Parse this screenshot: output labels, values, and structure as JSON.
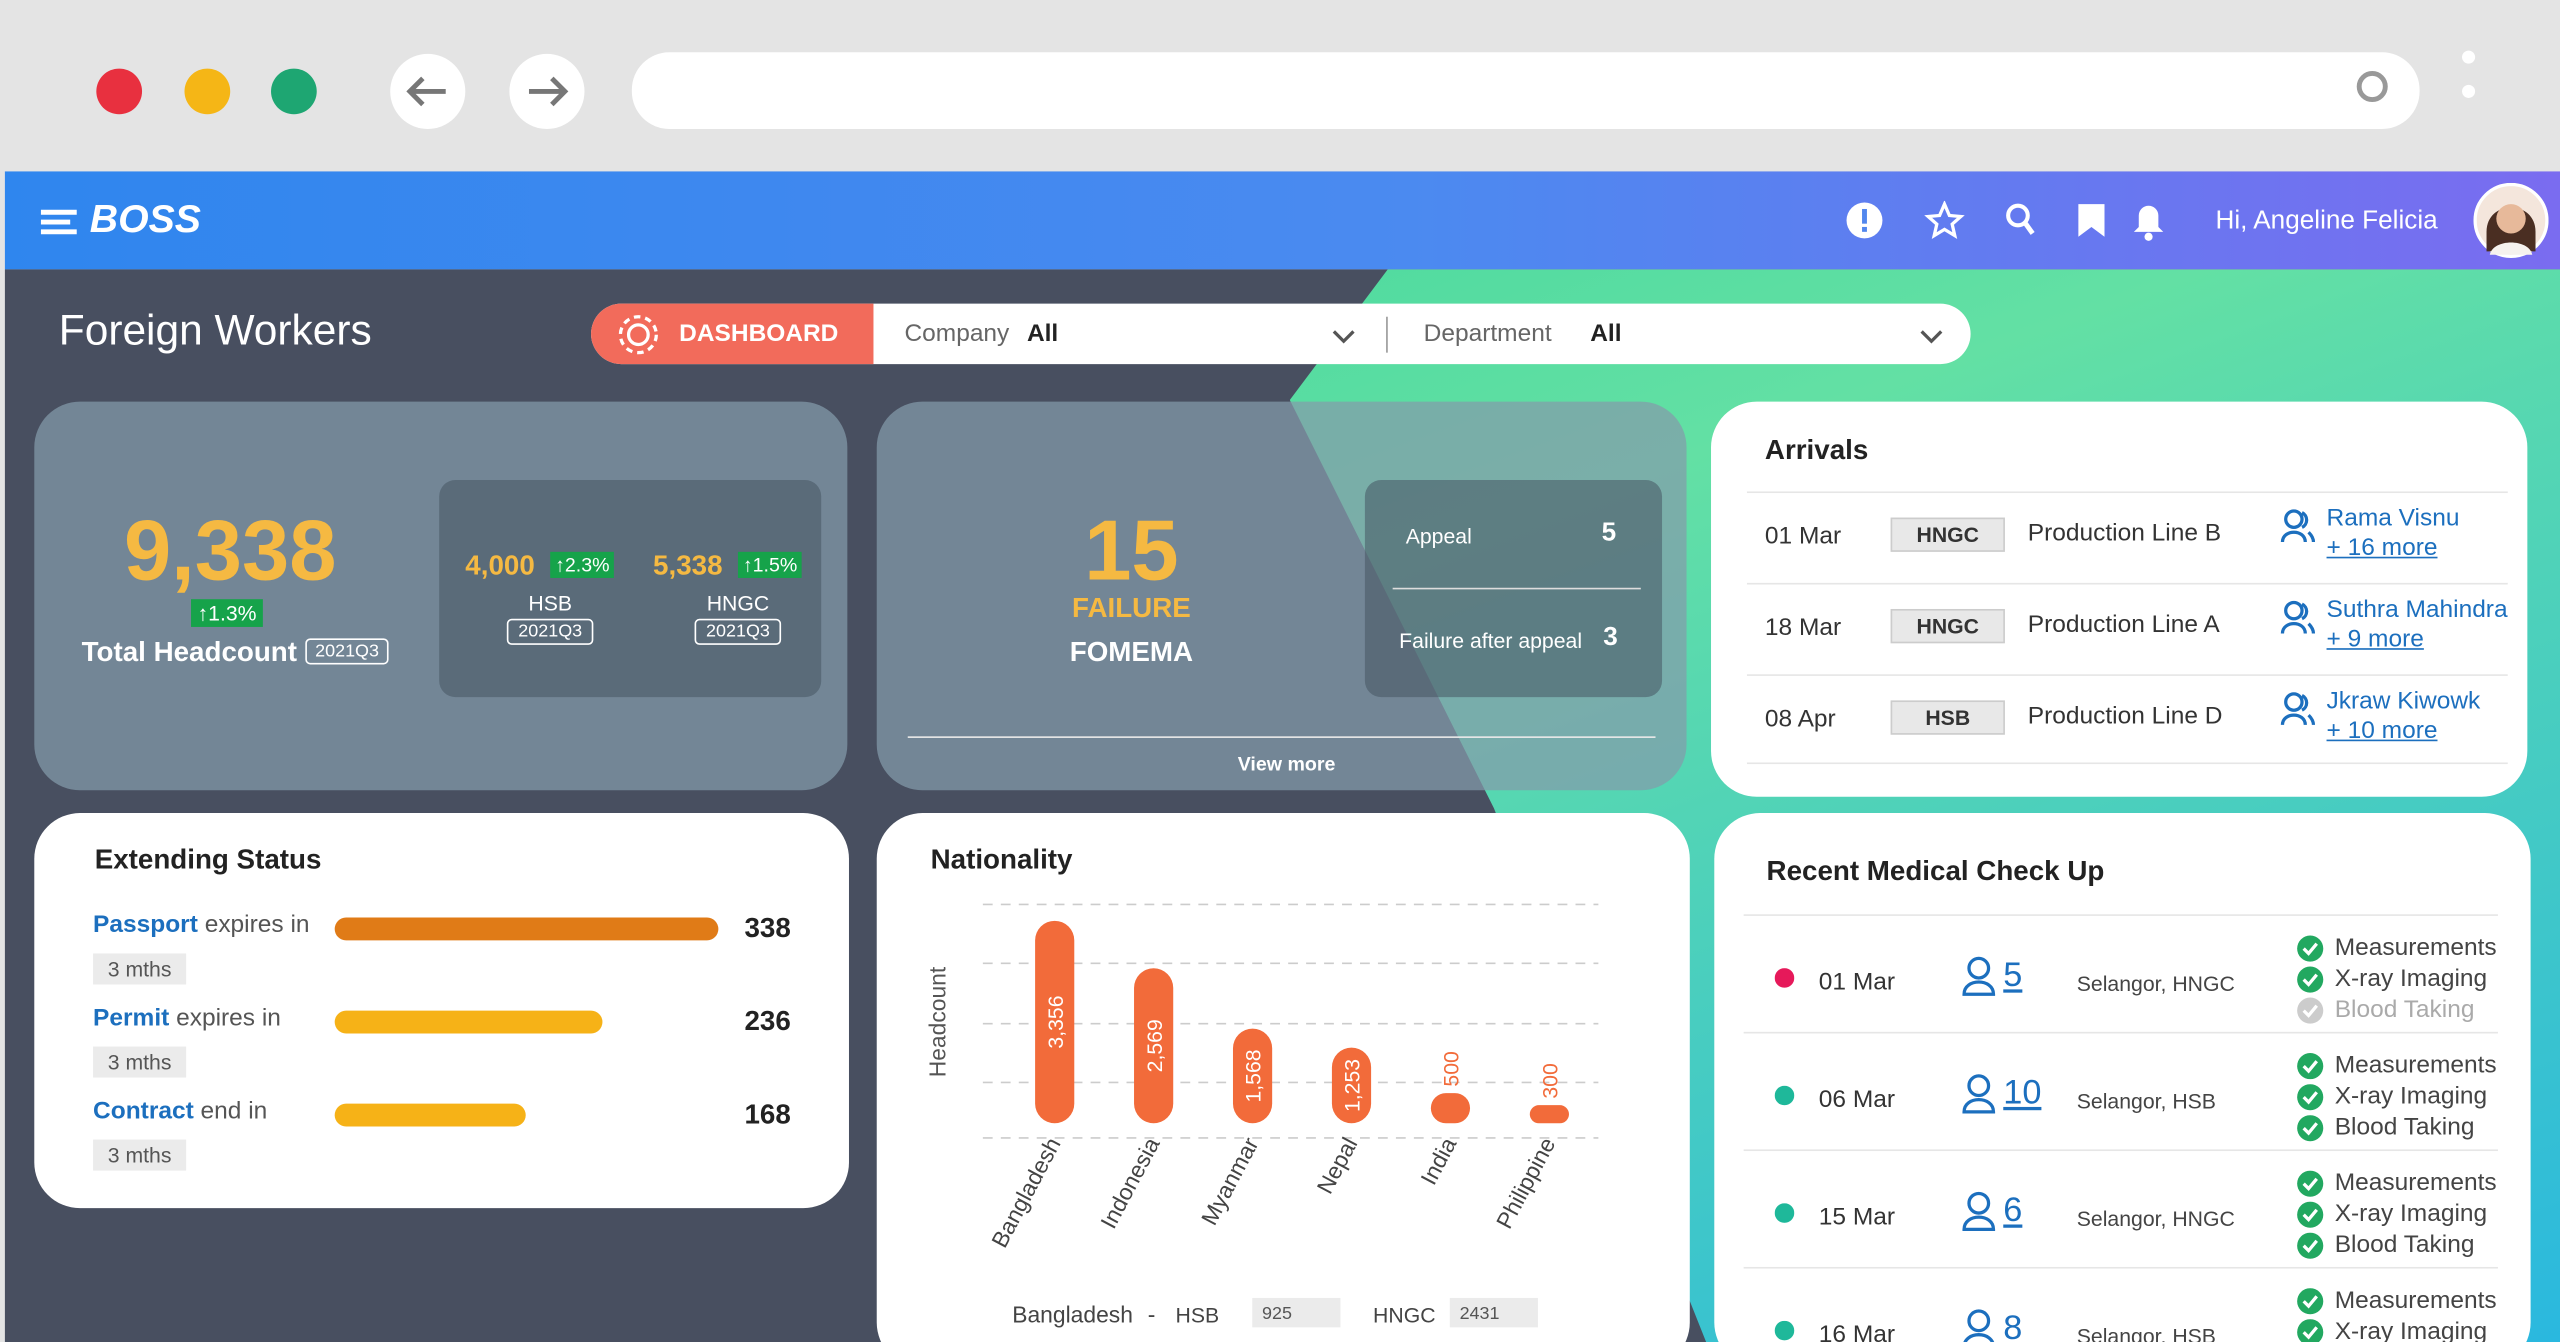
{
  "header": {
    "logo": "BOSS",
    "greeting": "Hi, Angeline Felicia"
  },
  "page": {
    "title": "Foreign Workers",
    "tab": "DASHBOARD",
    "filters": [
      {
        "label": "Company",
        "value": "All"
      },
      {
        "label": "Department",
        "value": "All"
      }
    ]
  },
  "headcount": {
    "total": "9,338",
    "change": "1.3%",
    "label": "Total Headcount",
    "period": "2021Q3",
    "companies": [
      {
        "value": "4,000",
        "change": "2.3%",
        "name": "HSB",
        "period": "2021Q3"
      },
      {
        "value": "5,338",
        "change": "1.5%",
        "name": "HNGC",
        "period": "2021Q3"
      }
    ]
  },
  "fomema": {
    "count": "15",
    "status": "FAILURE",
    "label": "FOMEMA",
    "rows": [
      {
        "label": "Appeal",
        "value": "5"
      },
      {
        "label": "Failure after appeal",
        "value": "3"
      }
    ],
    "link": "View more"
  },
  "arrivals": {
    "title": "Arrivals",
    "rows": [
      {
        "date": "01 Mar",
        "company": "HNGC",
        "line": "Production Line B",
        "person": "Rama Visnu",
        "more": "+ 16 more"
      },
      {
        "date": "18 Mar",
        "company": "HNGC",
        "line": "Production Line A",
        "person": "Suthra Mahindra",
        "more": "+ 9 more"
      },
      {
        "date": "08 Apr",
        "company": "HSB",
        "line": "Production Line D",
        "person": "Jkraw Kiwowk",
        "more": "+ 10 more"
      }
    ]
  },
  "extending": {
    "title": "Extending Status",
    "rows": [
      {
        "doc": "Passport",
        "text": "expires in",
        "period": "3 mths",
        "value": 338,
        "color": "#e07b17"
      },
      {
        "doc": "Permit",
        "text": "expires in",
        "period": "3 mths",
        "value": 236,
        "color": "#f6b217"
      },
      {
        "doc": "Contract",
        "text": "end in",
        "period": "3 mths",
        "value": 168,
        "color": "#f6b217"
      }
    ]
  },
  "nationality": {
    "type": "bar",
    "title": "Nationality",
    "y_label": "Headcount",
    "categories": [
      "Bangladesh",
      "Indonesia",
      "Myanmar",
      "Nepal",
      "India",
      "Philippine"
    ],
    "values": [
      3356,
      2569,
      1568,
      1253,
      500,
      300
    ],
    "value_labels": [
      "3,356",
      "2,569",
      "1,568",
      "1,253",
      "500",
      "300"
    ],
    "color": "#f26b3a",
    "footer": {
      "country": "Bangladesh",
      "sep": "-",
      "items": [
        {
          "name": "HSB",
          "value": "925"
        },
        {
          "name": "HNGC",
          "value": "2431"
        }
      ]
    }
  },
  "medical": {
    "title": "Recent Medical Check Up",
    "rows": [
      {
        "date": "01 Mar",
        "dot": "#e6195a",
        "count": "5",
        "location": "Selangor, HNGC",
        "checks": [
          {
            "name": "Measurements",
            "done": true
          },
          {
            "name": "X-ray Imaging",
            "done": true
          },
          {
            "name": "Blood Taking",
            "done": false
          }
        ]
      },
      {
        "date": "06 Mar",
        "dot": "#1fb89a",
        "count": "10",
        "location": "Selangor, HSB",
        "checks": [
          {
            "name": "Measurements",
            "done": true
          },
          {
            "name": "X-ray Imaging",
            "done": true
          },
          {
            "name": "Blood Taking",
            "done": true
          }
        ]
      },
      {
        "date": "15 Mar",
        "dot": "#1fb89a",
        "count": "6",
        "location": "Selangor, HNGC",
        "checks": [
          {
            "name": "Measurements",
            "done": true
          },
          {
            "name": "X-ray Imaging",
            "done": true
          },
          {
            "name": "Blood Taking",
            "done": true
          }
        ]
      },
      {
        "date": "16 Mar",
        "dot": "#1fb89a",
        "count": "8",
        "location": "Selangor, HSB",
        "checks": [
          {
            "name": "Measurements",
            "done": true
          },
          {
            "name": "X-ray Imaging",
            "done": true
          }
        ]
      }
    ]
  }
}
